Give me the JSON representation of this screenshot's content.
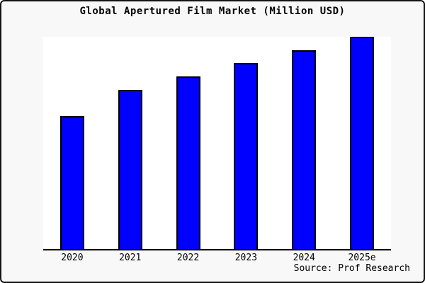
{
  "title": "Global Apertured Film Market (Million USD)",
  "source": "Source: Prof Research",
  "colors": {
    "background": "#f8f8f8",
    "plot_background": "#ffffff",
    "bar_fill": "#0000ff",
    "bar_border": "#000000",
    "axis": "#000000",
    "text": "#000000",
    "frame_border": "#141414"
  },
  "chart_data": {
    "type": "bar",
    "title": "Global Apertured Film Market (Million USD)",
    "categories": [
      "2020",
      "2021",
      "2022",
      "2023",
      "2024",
      "2025e"
    ],
    "values": [
      62.7,
      75.0,
      81.3,
      87.7,
      93.7,
      100.0
    ],
    "value_note": "y-axis is unlabeled in the image; values are relative bar heights normalized to 2025e = 100",
    "xlabel": "",
    "ylabel": "",
    "ylim": [
      0,
      100
    ],
    "grid": false,
    "legend": false,
    "bar_color": "#0000ff",
    "source": "Source: Prof Research"
  }
}
